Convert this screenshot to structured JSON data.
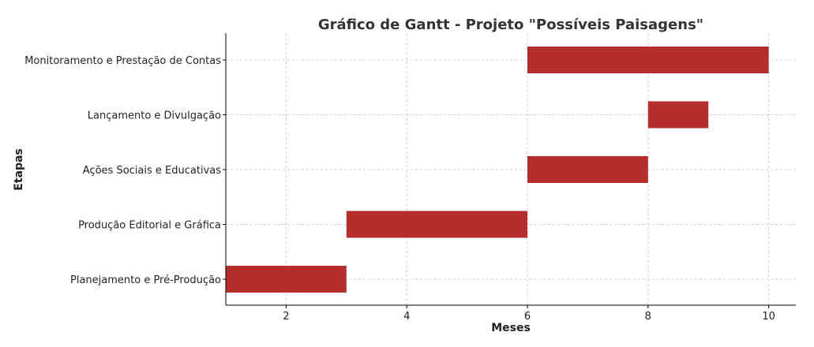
{
  "chart_data": {
    "type": "bar",
    "orientation": "horizontal-gantt",
    "title": "Gráfico de Gantt - Projeto \"Possíveis Paisagens\"",
    "xlabel": "Meses",
    "ylabel": "Etapas",
    "xlim": [
      1,
      10.45
    ],
    "xticks": [
      2,
      4,
      6,
      8,
      10
    ],
    "grid": true,
    "bar_color": "#b22222",
    "categories": [
      "Planejamento e Pré-Produção",
      "Produção Editorial e Gráfica",
      "Ações Sociais e Educativas",
      "Lançamento e Divulgação",
      "Monitoramento e Prestação de Contas"
    ],
    "tasks": [
      {
        "name": "Planejamento e Pré-Produção",
        "start": 1,
        "end": 3
      },
      {
        "name": "Produção Editorial e Gráfica",
        "start": 3,
        "end": 6
      },
      {
        "name": "Ações Sociais e Educativas",
        "start": 6,
        "end": 8
      },
      {
        "name": "Lançamento e Divulgação",
        "start": 8,
        "end": 9
      },
      {
        "name": "Monitoramento e Prestação de Contas",
        "start": 6,
        "end": 10
      }
    ]
  }
}
